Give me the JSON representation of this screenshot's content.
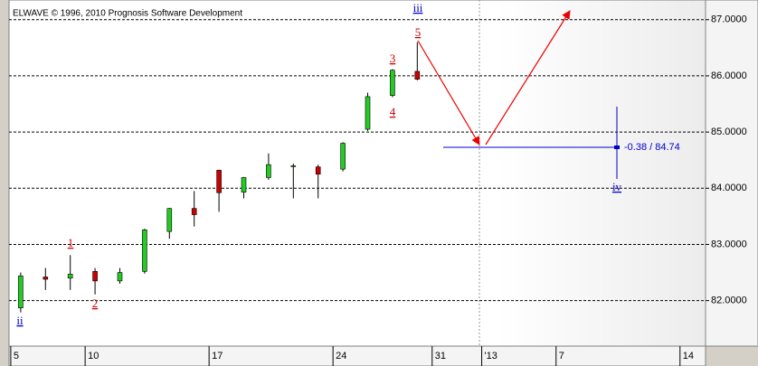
{
  "chart_data": {
    "type": "candlestick",
    "title": "ELWAVE © 1996, 2010 Prognosis Software Development",
    "x": [
      0.4,
      1.4,
      2.4,
      3.4,
      4.4,
      5.4,
      6.4,
      7.4,
      8.4,
      9.4,
      10.4,
      11.4,
      12.4,
      13.4,
      14.4,
      15.4,
      16.4
    ],
    "open": [
      81.87,
      82.42,
      82.4,
      82.52,
      82.35,
      82.52,
      83.23,
      83.64,
      84.32,
      83.93,
      84.19,
      84.39,
      84.38,
      84.34,
      85.05,
      85.65,
      86.08
    ],
    "high": [
      82.5,
      82.58,
      82.81,
      82.58,
      82.58,
      83.28,
      83.65,
      83.95,
      84.33,
      84.2,
      84.62,
      84.44,
      84.42,
      84.82,
      85.7,
      86.12,
      86.6
    ],
    "low": [
      81.79,
      82.19,
      82.19,
      82.11,
      82.3,
      82.48,
      83.1,
      83.32,
      83.58,
      83.82,
      84.15,
      83.82,
      83.82,
      84.3,
      85.02,
      85.62,
      85.92
    ],
    "close": [
      82.44,
      82.38,
      82.47,
      82.35,
      82.5,
      83.26,
      83.64,
      83.53,
      83.92,
      84.19,
      84.42,
      84.4,
      84.25,
      84.8,
      85.63,
      86.1,
      85.94
    ],
    "up_color": "#22cc22",
    "down_color": "#cc0000",
    "xlim": [
      -0.07,
      28.03
    ],
    "xticks": [
      {
        "value": 0,
        "label": "5"
      },
      {
        "value": 3,
        "label": "10"
      },
      {
        "value": 8,
        "label": "17"
      },
      {
        "value": 13,
        "label": "24"
      },
      {
        "value": 17,
        "label": "31"
      },
      {
        "value": 19,
        "label": "'13"
      },
      {
        "value": 22,
        "label": "7"
      },
      {
        "value": 27,
        "label": "14"
      }
    ],
    "ylim": [
      81.19,
      87.35
    ],
    "yticks": [
      {
        "value": 82,
        "label": "82.0000"
      },
      {
        "value": 83,
        "label": "83.0000"
      },
      {
        "value": 84,
        "label": "84.0000"
      },
      {
        "value": 85,
        "label": "85.0000"
      },
      {
        "value": 86,
        "label": "86.0000"
      },
      {
        "value": 87,
        "label": "87.0000"
      }
    ],
    "grid": true,
    "annotations": [
      {
        "text": "ii",
        "color": "#0000cc"
      },
      {
        "text": "1",
        "color": "#cc0000"
      },
      {
        "text": "2",
        "color": "#cc0000"
      },
      {
        "text": "3",
        "color": "#cc0000"
      },
      {
        "text": "4",
        "color": "#cc0000"
      },
      {
        "text": "5",
        "color": "#cc0000"
      },
      {
        "text": "iii",
        "color": "#0000cc"
      },
      {
        "text": "iv",
        "color": "#0000cc"
      },
      {
        "text": "-0.38 / 84.74",
        "color": "#0000cc"
      }
    ]
  }
}
